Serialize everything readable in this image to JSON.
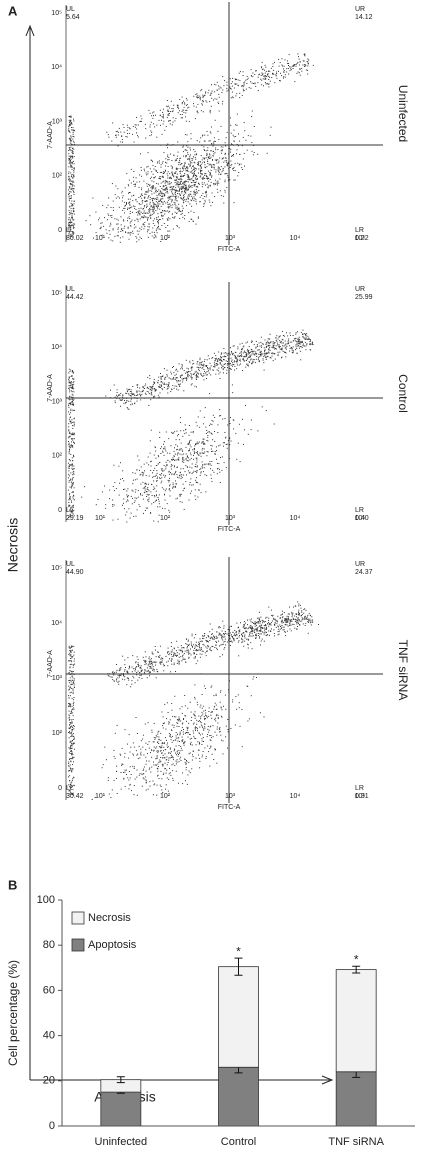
{
  "panel_a": {
    "label": "A",
    "y_axis_label": "Necrosis",
    "x_axis_label": "Apoptosis",
    "x_ticks": [
      "10¹",
      "10²",
      "10³",
      "10⁴",
      "10⁵"
    ],
    "y_ticks": [
      "0",
      "10²",
      "10³",
      "10⁴",
      "10⁵"
    ],
    "plots": [
      {
        "row_label": "Uninfected",
        "x_axis": "FITC-A",
        "y_axis": "7-AAD-A",
        "quadrants": [
          {
            "name": "UL",
            "value": "5.64"
          },
          {
            "name": "UR",
            "value": "14.12"
          },
          {
            "name": "LL",
            "value": "80.02"
          },
          {
            "name": "LR",
            "value": "0.22"
          }
        ]
      },
      {
        "row_label": "Control",
        "x_axis": "FITC-A",
        "y_axis": "7-AAD-A",
        "quadrants": [
          {
            "name": "UL",
            "value": "44.42"
          },
          {
            "name": "UR",
            "value": "25.99"
          },
          {
            "name": "LL",
            "value": "29.19"
          },
          {
            "name": "LR",
            "value": "0.40"
          }
        ]
      },
      {
        "row_label": "TNF siRNA",
        "x_axis": "FITC-A",
        "y_axis": "7-AAD-A",
        "quadrants": [
          {
            "name": "UL",
            "value": "44.90"
          },
          {
            "name": "UR",
            "value": "24.37"
          },
          {
            "name": "LL",
            "value": "30.42"
          },
          {
            "name": "LR",
            "value": "0.31"
          }
        ]
      }
    ]
  },
  "chart_data": {
    "type": "bar",
    "stacked": true,
    "panel_label": "B",
    "y_label": "Cell percentage (%)",
    "categories": [
      "Uninfected",
      "Control",
      "TNF siRNA"
    ],
    "series": [
      {
        "name": "Apoptosis",
        "color": "#808080",
        "values": [
          15,
          26,
          24
        ],
        "errors": [
          0.5,
          2.5,
          2.5
        ],
        "markers": [
          null,
          "*",
          "*"
        ]
      },
      {
        "name": "Necrosis",
        "color": "#f2f2f2",
        "values": [
          5.5,
          44.5,
          45.2
        ],
        "errors": [
          1.3,
          3.8,
          1.5
        ],
        "markers": [
          null,
          "*",
          "*"
        ]
      }
    ],
    "legend_order": [
      1,
      0
    ],
    "legend": "top-left",
    "ylim": [
      0,
      100
    ],
    "yticks": [
      0,
      20,
      40,
      60,
      80,
      100
    ]
  }
}
